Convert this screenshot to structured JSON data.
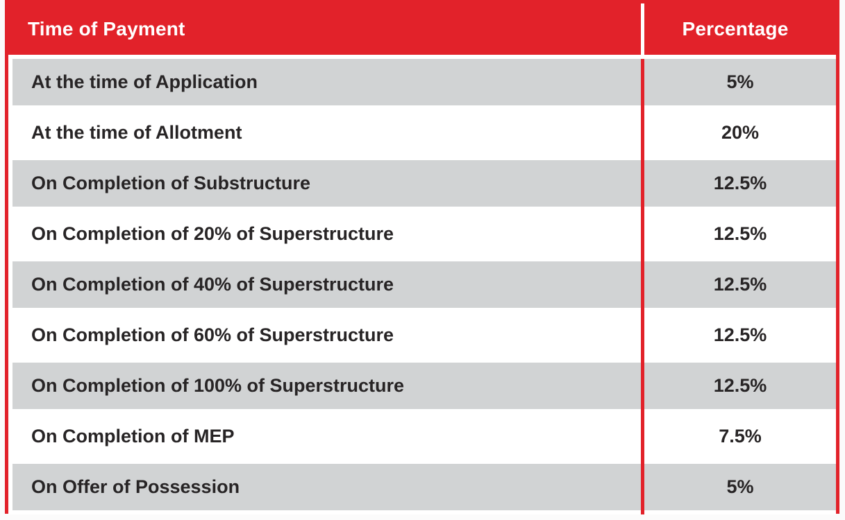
{
  "page": {
    "background": "#fbfbfb"
  },
  "colors": {
    "accent_red": "#e2222a",
    "row_gray": "#d1d3d4",
    "row_white": "#ffffff",
    "header_text": "#ffffff",
    "body_text": "#272425"
  },
  "table": {
    "header": {
      "col1": "Time of Payment",
      "col2": "Percentage"
    },
    "rows": [
      {
        "label": "At the time of Application",
        "value": "5%"
      },
      {
        "label": "At the time of Allotment",
        "value": "20%"
      },
      {
        "label": "On Completion of Substructure",
        "value": "12.5%"
      },
      {
        "label": "On Completion of 20% of Superstructure",
        "value": "12.5%"
      },
      {
        "label": "On Completion of 40% of Superstructure",
        "value": "12.5%"
      },
      {
        "label": "On Completion of 60% of Superstructure",
        "value": "12.5%"
      },
      {
        "label": "On Completion of 100% of Superstructure",
        "value": "12.5%"
      },
      {
        "label": "On Completion of MEP",
        "value": "7.5%"
      },
      {
        "label": "On Offer of Possession",
        "value": "5%"
      }
    ]
  },
  "chart_data": {
    "type": "table",
    "columns": [
      "Time of Payment",
      "Percentage"
    ],
    "rows": [
      [
        "At the time of Application",
        "5%"
      ],
      [
        "At the time of Allotment",
        "20%"
      ],
      [
        "On Completion of Substructure",
        "12.5%"
      ],
      [
        "On Completion of 20% of Superstructure",
        "12.5%"
      ],
      [
        "On Completion of 40% of Superstructure",
        "12.5%"
      ],
      [
        "On Completion of 60% of Superstructure",
        "12.5%"
      ],
      [
        "On Completion of 100% of Superstructure",
        "12.5%"
      ],
      [
        "On Completion of MEP",
        "7.5%"
      ],
      [
        "On Offer of Possession",
        "5%"
      ]
    ]
  }
}
